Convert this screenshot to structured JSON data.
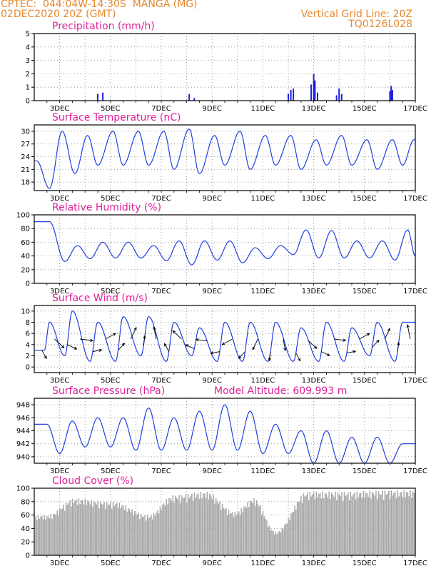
{
  "header": {
    "line1": "CPTEC:  044:04W-14:30S  MANGA (MG)",
    "line2": "02DEC2020 20Z (GMT)",
    "right1": "Vertical Grid Line: 20Z",
    "right2": "TQ0126L028"
  },
  "chart_data": [
    {
      "id": "precip",
      "type": "bar",
      "title": "Precipitation (mm/h)",
      "xticks": [
        "3DEC",
        "5DEC",
        "7DEC",
        "9DEC",
        "11DEC",
        "13DEC",
        "15DEC",
        "17DEC"
      ],
      "ylim": [
        0,
        5
      ],
      "yticks": [
        "0",
        "1",
        "2",
        "3",
        "4",
        "5"
      ],
      "x_days": [
        4.5,
        4.7,
        8.1,
        8.3,
        12.0,
        12.1,
        12.2,
        12.9,
        13.0,
        13.05,
        13.15,
        13.9,
        14.0,
        14.1,
        16.0,
        16.05,
        16.1
      ],
      "values": [
        0.5,
        0.6,
        0.5,
        0.2,
        0.5,
        0.8,
        0.9,
        1.2,
        2.0,
        1.5,
        0.6,
        0.4,
        0.9,
        0.5,
        0.7,
        1.1,
        0.8
      ],
      "color": "#1f1fe0"
    },
    {
      "id": "temp",
      "type": "line",
      "title": "Surface Temperature (nC)",
      "xticks": [
        "3DEC",
        "5DEC",
        "7DEC",
        "9DEC",
        "11DEC",
        "13DEC",
        "15DEC",
        "17DEC"
      ],
      "ylim": [
        16,
        31.5
      ],
      "yticks": [
        "18",
        "21",
        "24",
        "27",
        "30"
      ],
      "min_at": [
        2.6,
        3.6,
        4.5,
        5.5,
        6.5,
        7.5,
        8.5,
        9.5,
        10.5,
        11.5,
        12.5,
        13.5,
        14.5,
        15.5,
        16.5
      ],
      "min_val": [
        16.5,
        20,
        22,
        22,
        22,
        21,
        20,
        22,
        21,
        22,
        21,
        22,
        22,
        21,
        22
      ],
      "max_at": [
        2.1,
        3.1,
        4.1,
        5.1,
        6.1,
        7.1,
        8.1,
        9.1,
        10.1,
        11.1,
        12.1,
        13.1,
        14.1,
        15.1,
        16.1,
        16.95
      ],
      "max_val": [
        23,
        30,
        29,
        30,
        30,
        30,
        30.5,
        29,
        30,
        29,
        29,
        28,
        29,
        28,
        28,
        28
      ],
      "color": "#1f3fe0"
    },
    {
      "id": "rh",
      "type": "line",
      "title": "Relative Humidity (%)",
      "xticks": [
        "3DEC",
        "5DEC",
        "7DEC",
        "9DEC",
        "11DEC",
        "13DEC",
        "15DEC",
        "17DEC"
      ],
      "ylim": [
        0,
        100
      ],
      "yticks": [
        "0",
        "20",
        "40",
        "60",
        "80",
        "100"
      ],
      "min_at": [
        3.2,
        4.2,
        5.2,
        6.2,
        7.2,
        8.2,
        9.2,
        10.2,
        11.2,
        12.2,
        13.2,
        14.2,
        15.2,
        16.2,
        17.0
      ],
      "min_val": [
        32,
        36,
        37,
        37,
        33,
        27,
        34,
        30,
        36,
        42,
        37,
        37,
        37,
        34,
        40
      ],
      "max_at": [
        2.6,
        3.7,
        4.7,
        5.7,
        6.7,
        7.7,
        8.7,
        9.7,
        10.7,
        11.7,
        12.7,
        13.7,
        14.7,
        15.7,
        16.7
      ],
      "max_val": [
        90,
        55,
        60,
        60,
        55,
        62,
        62,
        62,
        52,
        55,
        78,
        77,
        62,
        62,
        78
      ],
      "color": "#1f3fe0"
    },
    {
      "id": "wind",
      "type": "line",
      "title": "Surface Wind (m/s)",
      "xticks": [
        "3DEC",
        "5DEC",
        "7DEC",
        "9DEC",
        "11DEC",
        "13DEC",
        "15DEC",
        "17DEC"
      ],
      "ylim": [
        -1,
        11
      ],
      "yticks": [
        "0",
        "2",
        "4",
        "6",
        "8",
        "10"
      ],
      "min_at": [
        2.4,
        3.2,
        4.2,
        5.2,
        6.2,
        7.2,
        8.2,
        9.2,
        10.2,
        11.2,
        12.2,
        13.2,
        14.2,
        15.2,
        16.2
      ],
      "min_val": [
        3,
        2,
        1,
        1,
        2,
        1,
        2,
        1,
        1,
        1,
        1,
        1,
        1,
        2,
        1
      ],
      "max_at": [
        2.6,
        3.5,
        4.5,
        5.5,
        6.5,
        7.5,
        8.5,
        9.5,
        10.5,
        11.5,
        12.5,
        13.5,
        14.5,
        15.5,
        16.5
      ],
      "max_val": [
        8,
        10,
        8,
        9,
        9,
        8,
        7,
        8,
        8,
        8,
        7,
        8,
        7,
        8,
        8
      ],
      "color": "#1f3fe0"
    },
    {
      "id": "pressure",
      "type": "line",
      "title": "Surface Pressure (hPa)",
      "annotation": "Model Altitude: 609.993 m",
      "xticks": [
        "3DEC",
        "5DEC",
        "7DEC",
        "9DEC",
        "11DEC",
        "13DEC",
        "15DEC",
        "17DEC"
      ],
      "ylim": [
        939,
        949
      ],
      "yticks": [
        "940",
        "942",
        "944",
        "946",
        "948"
      ],
      "min_at": [
        3.0,
        4.0,
        5.0,
        6.0,
        7.0,
        8.0,
        9.0,
        10.0,
        11.0,
        12.0,
        13.0,
        14.0,
        15.0,
        16.0
      ],
      "min_val": [
        940.5,
        941.5,
        941.5,
        941,
        941,
        941,
        941,
        941,
        940.5,
        940.5,
        939,
        939,
        939,
        939
      ],
      "max_at": [
        2.5,
        3.5,
        4.5,
        5.5,
        6.5,
        7.5,
        8.5,
        9.5,
        10.5,
        11.5,
        12.5,
        13.5,
        14.5,
        15.5,
        16.5
      ],
      "max_val": [
        945,
        945.5,
        946,
        946,
        947.5,
        946,
        947,
        948,
        947,
        945,
        944,
        944,
        943,
        943,
        942
      ],
      "color": "#1f3fe0"
    },
    {
      "id": "cloud",
      "type": "bar",
      "title": "Cloud Cover (%)",
      "xticks": [
        "3DEC",
        "5DEC",
        "7DEC",
        "9DEC",
        "11DEC",
        "13DEC",
        "15DEC",
        "17DEC"
      ],
      "ylim": [
        0,
        100
      ],
      "yticks": [
        "0",
        "20",
        "40",
        "60",
        "80",
        "100"
      ],
      "color": "#a8a8a8",
      "segments": [
        {
          "from": 2.0,
          "to": 3.0,
          "level": 60
        },
        {
          "from": 3.0,
          "to": 4.2,
          "level": 85
        },
        {
          "from": 4.2,
          "to": 6.0,
          "level": 80
        },
        {
          "from": 6.0,
          "to": 7.0,
          "level": 60
        },
        {
          "from": 7.0,
          "to": 8.0,
          "level": 90
        },
        {
          "from": 8.0,
          "to": 9.5,
          "level": 95
        },
        {
          "from": 9.5,
          "to": 10.3,
          "level": 65
        },
        {
          "from": 10.3,
          "to": 11.0,
          "level": 85
        },
        {
          "from": 11.0,
          "to": 12.0,
          "level": 35
        },
        {
          "from": 12.0,
          "to": 13.5,
          "level": 95
        },
        {
          "from": 13.5,
          "to": 15.0,
          "level": 95
        },
        {
          "from": 15.0,
          "to": 17.0,
          "level": 97
        }
      ]
    }
  ]
}
